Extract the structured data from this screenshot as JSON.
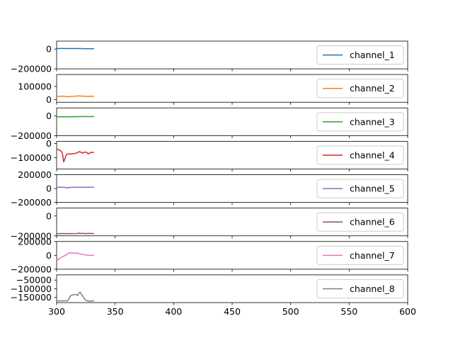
{
  "chart_data": {
    "type": "line",
    "xlim": [
      300,
      600
    ],
    "x_ticks": [
      300,
      350,
      400,
      450,
      500,
      550,
      600
    ],
    "x_tick_labels": [
      "300",
      "350",
      "400",
      "450",
      "500",
      "550",
      "600"
    ],
    "legend_position": "right",
    "grid": false,
    "panels": [
      {
        "name": "channel_1",
        "color": "#1f77b4",
        "ylim": [
          -200000,
          80000
        ],
        "y_ticks": [
          0,
          -200000
        ],
        "y_tick_labels": [
          "0",
          "−200000"
        ],
        "x": [
          300,
          305,
          310,
          315,
          320,
          325,
          330,
          332
        ],
        "y": [
          5000,
          5500,
          5000,
          5000,
          4500,
          3500,
          3000,
          3000
        ]
      },
      {
        "name": "channel_2",
        "color": "#ff7f0e",
        "ylim": [
          -20000,
          190000
        ],
        "y_ticks": [
          100000,
          0
        ],
        "y_tick_labels": [
          "100000",
          "0"
        ],
        "x": [
          300,
          302,
          305,
          308,
          310,
          312,
          315,
          318,
          320,
          322,
          325,
          328,
          330,
          332
        ],
        "y": [
          25000,
          24000,
          26000,
          23000,
          21000,
          24000,
          25000,
          28000,
          27000,
          26000,
          25000,
          24000,
          25000,
          25000
        ]
      },
      {
        "name": "channel_3",
        "color": "#2ca02c",
        "ylim": [
          -200000,
          80000
        ],
        "y_ticks": [
          0,
          -200000
        ],
        "y_tick_labels": [
          "0",
          "−200000"
        ],
        "x": [
          300,
          310,
          320,
          332
        ],
        "y": [
          -10000,
          -9000,
          -8000,
          -8000
        ]
      },
      {
        "name": "channel_4",
        "color": "#d62728",
        "ylim": [
          -180000,
          15000
        ],
        "y_ticks": [
          0,
          -100000
        ],
        "y_tick_labels": [
          "0",
          "−100000"
        ],
        "x": [
          300,
          302,
          304,
          305,
          306,
          307,
          308,
          309,
          310,
          312,
          314,
          316,
          318,
          319,
          320,
          321,
          322,
          324,
          326,
          327,
          328,
          330,
          332
        ],
        "y": [
          -40000,
          -45000,
          -55000,
          -70000,
          -130000,
          -110000,
          -85000,
          -75000,
          -73000,
          -75000,
          -72000,
          -70000,
          -65000,
          -58000,
          -60000,
          -62000,
          -68000,
          -60000,
          -65000,
          -75000,
          -68000,
          -63000,
          -63000
        ]
      },
      {
        "name": "channel_5",
        "color": "#9467bd",
        "ylim": [
          -200000,
          200000
        ],
        "y_ticks": [
          200000,
          0,
          -200000
        ],
        "y_tick_labels": [
          "200000",
          "0",
          "−200000"
        ],
        "x": [
          300,
          305,
          308,
          309,
          310,
          315,
          320,
          325,
          332
        ],
        "y": [
          20000,
          18000,
          15000,
          5000,
          15000,
          18000,
          19000,
          20000,
          20000
        ]
      },
      {
        "name": "channel_6",
        "color": "#8c564b",
        "ylim": [
          -200000,
          80000
        ],
        "y_ticks": [
          0,
          -200000
        ],
        "y_tick_labels": [
          "0",
          "−200000"
        ],
        "x": [
          300,
          310,
          318,
          319,
          320,
          322,
          325,
          328,
          332
        ],
        "y": [
          -178000,
          -178000,
          -177000,
          -172000,
          -178000,
          -175000,
          -178000,
          -176000,
          -178000
        ]
      },
      {
        "name": "channel_7",
        "color": "#e377c2",
        "ylim": [
          -200000,
          200000
        ],
        "y_ticks": [
          200000,
          0,
          -200000
        ],
        "y_tick_labels": [
          "200000",
          "0",
          "−200000"
        ],
        "x": [
          300,
          302,
          305,
          308,
          310,
          312,
          315,
          318,
          320,
          322,
          325,
          328,
          330,
          332
        ],
        "y": [
          -80000,
          -50000,
          -20000,
          5000,
          30000,
          35000,
          30000,
          32000,
          20000,
          15000,
          5000,
          0,
          0,
          0
        ]
      },
      {
        "name": "channel_8",
        "color": "#7f7f7f",
        "ylim": [
          -180000,
          -20000
        ],
        "y_ticks": [
          -50000,
          -100000,
          -150000
        ],
        "y_tick_labels": [
          "−50000",
          "−100000",
          "−150000"
        ],
        "x": [
          300,
          305,
          309,
          310,
          311,
          312,
          314,
          316,
          318,
          319,
          320,
          321,
          322,
          324,
          326,
          328,
          330,
          332
        ],
        "y": [
          -170000,
          -170000,
          -170000,
          -165000,
          -150000,
          -140000,
          -135000,
          -133000,
          -138000,
          -125000,
          -120000,
          -130000,
          -140000,
          -160000,
          -170000,
          -172000,
          -170000,
          -170000
        ]
      }
    ]
  }
}
